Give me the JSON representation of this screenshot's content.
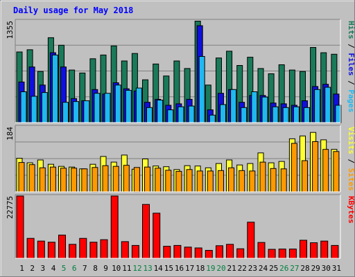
{
  "chart_data": {
    "type": "bar",
    "title": "Daily usage for May 2018",
    "categories": [
      "1",
      "2",
      "3",
      "4",
      "5",
      "6",
      "7",
      "8",
      "9",
      "10",
      "11",
      "12",
      "13",
      "14",
      "15",
      "16",
      "17",
      "18",
      "19",
      "20",
      "21",
      "22",
      "23",
      "24",
      "25",
      "26",
      "27",
      "28",
      "29",
      "30",
      "31"
    ],
    "weekend_categories": [
      "5",
      "6",
      "12",
      "13",
      "19",
      "20",
      "26",
      "27"
    ],
    "panels": [
      {
        "id": "hits-files-pages",
        "max_label": "1355",
        "ylim": [
          0,
          1355
        ],
        "grid": true,
        "legend": {
          "position": "right-vertical",
          "separator": " / ",
          "items": [
            "Pages",
            "Files",
            "Hits"
          ]
        },
        "series": [
          {
            "name": "Hits",
            "color": "#1a7a5a",
            "values": [
              940,
              970,
              680,
              1130,
              1030,
              700,
              660,
              850,
              900,
              1020,
              820,
              920,
              570,
              780,
              620,
              820,
              720,
              1350,
              500,
              860,
              950,
              760,
              870,
              720,
              650,
              770,
              700,
              680,
              1000,
              930,
              910
            ]
          },
          {
            "name": "Files",
            "color": "#1010dd",
            "values": [
              540,
              740,
              500,
              930,
              740,
              320,
              290,
              440,
              380,
              530,
              450,
              420,
              270,
              310,
              230,
              250,
              310,
              1290,
              170,
              390,
              440,
              270,
              360,
              360,
              260,
              250,
              230,
              290,
              480,
              510,
              380
            ]
          },
          {
            "name": "Pages",
            "color": "#20b8f0",
            "values": [
              410,
              350,
              400,
              900,
              270,
              280,
              290,
              390,
              390,
              500,
              430,
              460,
              200,
              300,
              170,
              210,
              220,
              880,
              100,
              240,
              440,
              200,
              410,
              340,
              210,
              200,
              210,
              200,
              440,
              470,
              230
            ]
          }
        ]
      },
      {
        "id": "visits-sites",
        "max_label": "184",
        "ylim": [
          0,
          184
        ],
        "grid": true,
        "legend": {
          "position": "right-vertical",
          "separator": " / ",
          "items": [
            "Sites",
            "Visits"
          ]
        },
        "series": [
          {
            "name": "Visits",
            "color": "#ffff33",
            "values": [
              95,
              82,
              90,
              78,
              72,
              70,
              65,
              78,
              100,
              84,
              104,
              64,
              93,
              73,
              71,
              63,
              74,
              73,
              68,
              80,
              90,
              76,
              80,
              110,
              82,
              86,
              150,
              158,
              168,
              147,
              120
            ]
          },
          {
            "name": "Sites",
            "color": "#ff9900",
            "values": [
              83,
              77,
              68,
              70,
              67,
              67,
              65,
              69,
              74,
              72,
              75,
              69,
              70,
              67,
              61,
              58,
              63,
              59,
              59,
              60,
              68,
              60,
              59,
              84,
              66,
              65,
              137,
              88,
              142,
              120,
              114
            ]
          }
        ]
      },
      {
        "id": "kbytes",
        "max_label": "22775",
        "ylim": [
          0,
          22775
        ],
        "grid": false,
        "legend": {
          "position": "right-vertical",
          "separator": "",
          "items": [
            "KBytes"
          ]
        },
        "series": [
          {
            "name": "KBytes",
            "color": "#ff0000",
            "values": [
              22775,
              7300,
              6300,
              5900,
              8500,
              5100,
              7300,
              5900,
              6800,
              22775,
              6100,
              4700,
              19700,
              16500,
              4400,
              4700,
              4100,
              3800,
              2900,
              4600,
              5100,
              3500,
              13200,
              5800,
              3300,
              3400,
              3400,
              6600,
              5700,
              6300,
              4700
            ]
          }
        ]
      }
    ]
  },
  "colors": {
    "background": "#c0c0c0",
    "plot_background": "#c0c0c0",
    "title_text": "#0000ff",
    "weekday_label": "#000000",
    "weekend_label": "#008040",
    "gridline": "#808080",
    "bar_outline": "#000000"
  }
}
